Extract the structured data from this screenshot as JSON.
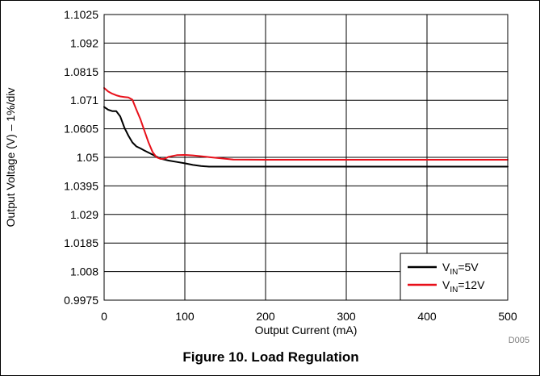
{
  "chart_data": {
    "type": "line",
    "xlabel": "Output Current (mA)",
    "ylabel": "Output Voltage (V) – 1%/div",
    "xlim": [
      0,
      500
    ],
    "ylim": [
      0.9975,
      1.1025
    ],
    "xticks": [
      "0",
      "100",
      "200",
      "300",
      "400",
      "500"
    ],
    "yticks": [
      "1.1025",
      "1.092",
      "1.0815",
      "1.071",
      "1.0605",
      "1.05",
      "1.0395",
      "1.029",
      "1.0185",
      "1.008",
      "0.9975"
    ],
    "grid": true,
    "legend_position": "bottom-right",
    "series": [
      {
        "name": "VIN=5V",
        "label_base": "V",
        "label_sub": "IN",
        "label_rest": "=5V",
        "color": "#000000",
        "x": [
          0,
          5,
          10,
          15,
          20,
          25,
          30,
          35,
          40,
          45,
          50,
          60,
          70,
          80,
          90,
          100,
          110,
          120,
          130,
          150,
          200,
          300,
          400,
          500
        ],
        "y": [
          1.0685,
          1.0675,
          1.067,
          1.067,
          1.065,
          1.061,
          1.058,
          1.0555,
          1.054,
          1.0533,
          1.0525,
          1.051,
          1.0495,
          1.0488,
          1.0483,
          1.0478,
          1.0472,
          1.0468,
          1.0466,
          1.0466,
          1.0466,
          1.0466,
          1.0466,
          1.0466
        ]
      },
      {
        "name": "VIN=12V",
        "label_base": "V",
        "label_sub": "IN",
        "label_rest": "=12V",
        "color": "#e8101a",
        "x": [
          0,
          5,
          10,
          15,
          20,
          25,
          30,
          35,
          40,
          45,
          50,
          55,
          60,
          65,
          70,
          75,
          80,
          90,
          100,
          110,
          130,
          160,
          200,
          300,
          400,
          500
        ],
        "y": [
          1.0755,
          1.0742,
          1.0734,
          1.0728,
          1.0724,
          1.0722,
          1.072,
          1.0712,
          1.0675,
          1.064,
          1.0597,
          1.0555,
          1.052,
          1.05,
          1.0494,
          1.0495,
          1.0502,
          1.0508,
          1.0509,
          1.0507,
          1.0501,
          1.0492,
          1.0491,
          1.0491,
          1.0491,
          1.0491
        ]
      }
    ]
  },
  "figure": {
    "caption": "Figure 10. Load Regulation",
    "source_id": "D005"
  }
}
